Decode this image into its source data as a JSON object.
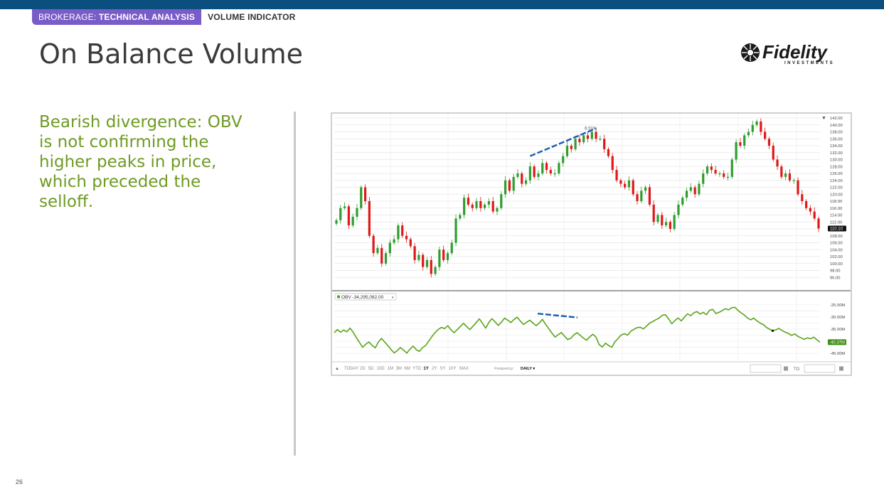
{
  "header": {
    "crumb_prefix": "BROKERAGE: ",
    "crumb_section": "TECHNICAL ANALYSIS",
    "tag": "VOLUME INDICATOR"
  },
  "slide": {
    "title": "On Balance Volume",
    "caption": "Bearish divergence: OBV is not confirming the higher peaks in price, which preceded the selloff.",
    "page_number": "26"
  },
  "logo": {
    "name": "Fidelity",
    "subtitle": "INVESTMENTS"
  },
  "colors": {
    "topbar": "#0b4f7e",
    "crumb_pill": "#7a5cc9",
    "caption": "#6f9a23",
    "up_candle": "#2e9e2e",
    "down_candle": "#e01818",
    "obv_line": "#5aa41a",
    "divergence_line": "#1f5fb5"
  },
  "chart_data": [
    {
      "type": "candlestick",
      "title": "",
      "ylim": [
        94,
        142
      ],
      "y_ticks": [
        "142.00",
        "140.00",
        "138.00",
        "136.00",
        "134.00",
        "132.00",
        "130.00",
        "128.00",
        "126.00",
        "124.00",
        "122.00",
        "120.00",
        "118.00",
        "116.00",
        "114.00",
        "112.00",
        "110.10",
        "108.00",
        "106.00",
        "104.00",
        "102.00",
        "100.00",
        "98.00",
        "96.00"
      ],
      "last_price": "110.10",
      "annotation": "6.51%",
      "closes": [
        112.5,
        116,
        116.5,
        111,
        113.5,
        116,
        122,
        118,
        108,
        103,
        104.5,
        100,
        103,
        106,
        107,
        111,
        108,
        107,
        105,
        101,
        102.5,
        99,
        101,
        97,
        99,
        104,
        101,
        103,
        106,
        113,
        114,
        119,
        117,
        116,
        118,
        116,
        117,
        118,
        115,
        116,
        120,
        124,
        121,
        125,
        126,
        123,
        124,
        128,
        125,
        126,
        129,
        127,
        126,
        126,
        129,
        131,
        134,
        133,
        136,
        135,
        137,
        136,
        138,
        136,
        136,
        133,
        131,
        127,
        124,
        123,
        122,
        124,
        120,
        118,
        121,
        122,
        117,
        112,
        114,
        111,
        112,
        110,
        114,
        117,
        119,
        121,
        122,
        120,
        123,
        126,
        128,
        127,
        126,
        126,
        125,
        125,
        130,
        135,
        134,
        137,
        138,
        140,
        141,
        138,
        136,
        134,
        130,
        128,
        125,
        126,
        124,
        124,
        120,
        118,
        116,
        115,
        113,
        110.1
      ],
      "divergence_price": {
        "from": 47,
        "to": 63
      }
    },
    {
      "type": "line",
      "title": "",
      "legend": "OBV -34,295,082.00",
      "ylim": [
        -47,
        -23
      ],
      "y_ticks": [
        "-25.00M",
        "-30.00M",
        "-35.00M",
        "-40.37M",
        "-45.00M"
      ],
      "last_value": "-40.37M",
      "series": [
        {
          "name": "OBV",
          "values": [
            -36.5,
            -35.2,
            -36.3,
            -35.4,
            -36.1,
            -34.6,
            -36.3,
            -38.5,
            -40.5,
            -42.5,
            -41.2,
            -40.3,
            -41.7,
            -42.7,
            -40.3,
            -38.8,
            -40.4,
            -41.8,
            -43.4,
            -44.8,
            -43.8,
            -42.6,
            -43.7,
            -44.9,
            -43.3,
            -42.0,
            -43.5,
            -44.2,
            -42.6,
            -41.7,
            -39.8,
            -38.0,
            -36.4,
            -35.1,
            -34.3,
            -34.8,
            -33.6,
            -35.3,
            -36.5,
            -35.2,
            -33.9,
            -32.6,
            -34.0,
            -35.2,
            -33.8,
            -32.3,
            -30.8,
            -32.6,
            -34.6,
            -32.3,
            -30.7,
            -32.0,
            -33.5,
            -32.1,
            -30.5,
            -31.3,
            -32.3,
            -31.0,
            -30.1,
            -31.7,
            -33.1,
            -32.2,
            -31.3,
            -32.5,
            -33.6,
            -32.5,
            -31.0,
            -33.0,
            -34.8,
            -36.6,
            -38.3,
            -37.3,
            -36.4,
            -37.9,
            -39.3,
            -38.8,
            -37.3,
            -36.5,
            -37.6,
            -38.7,
            -39.6,
            -38.2,
            -37.1,
            -38.3,
            -41.4,
            -42.4,
            -40.8,
            -41.8,
            -42.5,
            -40.2,
            -38.8,
            -37.4,
            -36.9,
            -37.5,
            -35.9,
            -35.1,
            -34.4,
            -34.2,
            -34.9,
            -33.8,
            -32.5,
            -31.9,
            -31.1,
            -30.5,
            -29.3,
            -29.1,
            -30.8,
            -32.8,
            -31.5,
            -30.4,
            -31.6,
            -30.1,
            -28.7,
            -29.5,
            -28.3,
            -27.8,
            -28.8,
            -28.1,
            -29.1,
            -27.2,
            -26.9,
            -28.6,
            -28.1,
            -27.4,
            -26.6,
            -27.1,
            -26.2,
            -26.0,
            -27.3,
            -28.3,
            -29.2,
            -30.4,
            -31.2,
            -30.5,
            -31.6,
            -32.5,
            -33.1,
            -34.3,
            -35.0,
            -35.7,
            -35.3,
            -34.7,
            -35.6,
            -36.3,
            -36.8,
            -37.6,
            -37.0,
            -38.0,
            -38.6,
            -39.2,
            -38.6,
            -39.0,
            -38.3,
            -39.4,
            -40.4
          ]
        }
      ],
      "divergence_obv": {
        "from_value": -29.2,
        "to_value": -30.8
      }
    }
  ],
  "toolbar": {
    "scroll_left": "▲",
    "ranges": [
      "TODAY",
      "2D",
      "5D",
      "10D",
      "1M",
      "3M",
      "6M",
      "YTD",
      "1Y",
      "2Y",
      "5Y",
      "10Y",
      "MAX"
    ],
    "active_range": "1Y",
    "frequency_label": "Frequency:",
    "frequency_value": "DAILY ▾",
    "to_label": "TO"
  }
}
